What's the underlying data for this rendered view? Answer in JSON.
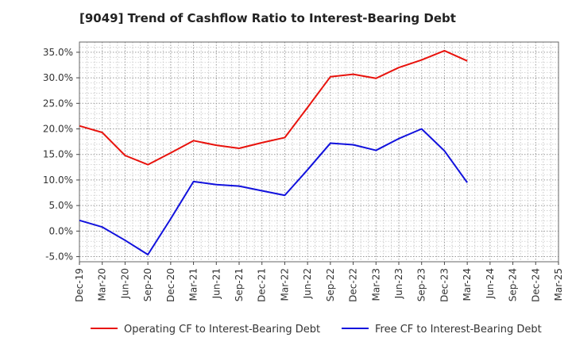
{
  "chart_data": {
    "type": "line",
    "title": "[9049]  Trend of Cashflow Ratio to Interest-Bearing Debt",
    "xlabel": "",
    "ylabel": "",
    "categories": [
      "Dec-19",
      "Mar-20",
      "Jun-20",
      "Sep-20",
      "Dec-20",
      "Mar-21",
      "Jun-21",
      "Sep-21",
      "Dec-21",
      "Mar-22",
      "Jun-22",
      "Sep-22",
      "Dec-22",
      "Mar-23",
      "Jun-23",
      "Sep-23",
      "Dec-23",
      "Mar-24",
      "Jun-24",
      "Sep-24",
      "Dec-24",
      "Mar-25"
    ],
    "ylim": [
      -6,
      37
    ],
    "yticks": [
      -5,
      0,
      5,
      10,
      15,
      20,
      25,
      30,
      35
    ],
    "ytick_labels": [
      "-5.0%",
      "0.0%",
      "5.0%",
      "10.0%",
      "15.0%",
      "20.0%",
      "25.0%",
      "30.0%",
      "35.0%"
    ],
    "grid": true,
    "legend_position": "bottom",
    "series": [
      {
        "name": "Operating CF to Interest-Bearing Debt",
        "color": "#e8120c",
        "values": [
          20.6,
          19.3,
          14.8,
          13.0,
          15.3,
          17.7,
          16.8,
          16.2,
          17.3,
          18.3,
          24.2,
          30.2,
          30.7,
          29.9,
          32.0,
          33.5,
          35.3,
          33.3,
          null,
          null,
          null,
          null
        ]
      },
      {
        "name": "Free CF to Interest-Bearing Debt",
        "color": "#1111dd",
        "values": [
          2.1,
          0.8,
          -1.8,
          -4.6,
          2.4,
          9.7,
          9.1,
          8.8,
          7.9,
          7.0,
          12.0,
          17.2,
          16.9,
          15.8,
          18.1,
          20.0,
          15.7,
          9.5,
          null,
          null,
          null,
          null
        ]
      }
    ]
  }
}
